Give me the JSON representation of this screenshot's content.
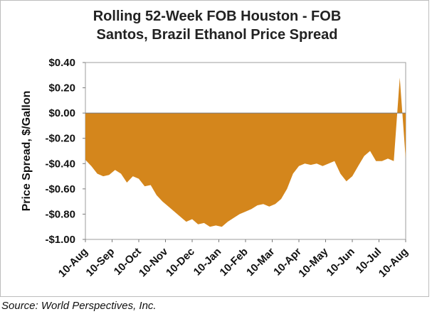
{
  "chart_data": {
    "type": "area",
    "title_line1": "Rolling 52-Week FOB Houston - FOB",
    "title_line2": "Santos, Brazil Ethanol Price Spread",
    "ylabel": "Price Spread, $/Gallon",
    "xlabel": "",
    "ylim": [
      -1.0,
      0.4
    ],
    "y_ticks": [
      {
        "value": 0.4,
        "label": "$0.40"
      },
      {
        "value": 0.2,
        "label": "$0.20"
      },
      {
        "value": 0.0,
        "label": "$0.00"
      },
      {
        "value": -0.2,
        "label": "-$0.20"
      },
      {
        "value": -0.4,
        "label": "-$0.40"
      },
      {
        "value": -0.6,
        "label": "-$0.60"
      },
      {
        "value": -0.8,
        "label": "-$0.80"
      },
      {
        "value": -1.0,
        "label": "-$1.00"
      }
    ],
    "x_ticks": [
      "10-Aug",
      "10-Sep",
      "10-Oct",
      "10-Nov",
      "10-Dec",
      "10-Jan",
      "10-Feb",
      "10-Mar",
      "10-Apr",
      "10-May",
      "10-Jun",
      "10-Jul",
      "10-Aug"
    ],
    "grid": false,
    "color": "#D4861C",
    "x": [
      "10-Aug",
      "17-Aug",
      "24-Aug",
      "31-Aug",
      "7-Sep",
      "14-Sep",
      "21-Sep",
      "28-Sep",
      "5-Oct",
      "12-Oct",
      "19-Oct",
      "26-Oct",
      "2-Nov",
      "9-Nov",
      "16-Nov",
      "23-Nov",
      "30-Nov",
      "7-Dec",
      "14-Dec",
      "21-Dec",
      "28-Dec",
      "4-Jan",
      "11-Jan",
      "18-Jan",
      "25-Jan",
      "1-Feb",
      "8-Feb",
      "15-Feb",
      "22-Feb",
      "1-Mar",
      "8-Mar",
      "15-Mar",
      "22-Mar",
      "29-Mar",
      "5-Apr",
      "12-Apr",
      "19-Apr",
      "26-Apr",
      "3-May",
      "10-May",
      "17-May",
      "24-May",
      "31-May",
      "7-Jun",
      "14-Jun",
      "21-Jun",
      "28-Jun",
      "5-Jul",
      "12-Jul",
      "19-Jul",
      "26-Jul",
      "2-Aug",
      "5-Aug",
      "7-Aug",
      "10-Aug"
    ],
    "values": [
      -0.37,
      -0.42,
      -0.48,
      -0.5,
      -0.49,
      -0.45,
      -0.48,
      -0.55,
      -0.5,
      -0.52,
      -0.58,
      -0.57,
      -0.65,
      -0.7,
      -0.74,
      -0.78,
      -0.82,
      -0.86,
      -0.84,
      -0.88,
      -0.87,
      -0.9,
      -0.89,
      -0.9,
      -0.86,
      -0.83,
      -0.8,
      -0.78,
      -0.76,
      -0.73,
      -0.72,
      -0.74,
      -0.72,
      -0.68,
      -0.6,
      -0.48,
      -0.42,
      -0.4,
      -0.41,
      -0.4,
      -0.42,
      -0.4,
      -0.38,
      -0.48,
      -0.54,
      -0.5,
      -0.42,
      -0.34,
      -0.3,
      -0.38,
      -0.38,
      -0.36,
      -0.38,
      0.28,
      -0.36
    ]
  },
  "source": "Source: World Perspectives, Inc."
}
